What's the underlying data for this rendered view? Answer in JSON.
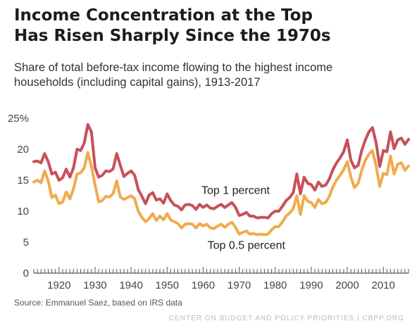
{
  "header": {
    "title_line1": "Income Concentration at the Top",
    "title_line2": "Has Risen Sharply Since the 1970s",
    "subtitle_line1": "Share of total before-tax income flowing to the highest income",
    "subtitle_line2": "households (including capital gains), 1913-2017"
  },
  "footer": {
    "source": "Source: Emmanuel Saez, based on IRS data",
    "credit": "CENTER ON BUDGET AND POLICY PRIORITIES | CBPP.ORG"
  },
  "colors": {
    "top1": "#c8505a",
    "top05": "#f0ab4e",
    "axis": "#555555",
    "grid": "#cccccc"
  },
  "chart_data": {
    "type": "line",
    "title": "Income Concentration at the Top Has Risen Sharply Since the 1970s",
    "xlabel": "",
    "ylabel": "",
    "xlim": [
      1913,
      2017
    ],
    "ylim": [
      0,
      25
    ],
    "y_ticks": [
      0,
      5,
      10,
      15,
      20,
      25
    ],
    "y_tick_labels": [
      "0",
      "5",
      "10",
      "15",
      "20",
      "25%"
    ],
    "x_ticks": [
      1920,
      1930,
      1940,
      1950,
      1960,
      1970,
      1980,
      1990,
      2000,
      2010
    ],
    "x_tick_labels": [
      "1920",
      "1930",
      "1940",
      "1950",
      "1960",
      "1970",
      "1980",
      "1990",
      "2000",
      "2010"
    ],
    "grid": false,
    "series": [
      {
        "name": "Top 1 percent",
        "color": "#c8505a",
        "x": [
          1913,
          1914,
          1915,
          1916,
          1917,
          1918,
          1919,
          1920,
          1921,
          1922,
          1923,
          1924,
          1925,
          1926,
          1927,
          1928,
          1929,
          1930,
          1931,
          1932,
          1933,
          1934,
          1935,
          1936,
          1937,
          1938,
          1939,
          1940,
          1941,
          1942,
          1943,
          1944,
          1945,
          1946,
          1947,
          1948,
          1949,
          1950,
          1951,
          1952,
          1953,
          1954,
          1955,
          1956,
          1957,
          1958,
          1959,
          1960,
          1961,
          1962,
          1963,
          1964,
          1965,
          1966,
          1967,
          1968,
          1969,
          1970,
          1971,
          1972,
          1973,
          1974,
          1975,
          1976,
          1977,
          1978,
          1979,
          1980,
          1981,
          1982,
          1983,
          1984,
          1985,
          1986,
          1987,
          1988,
          1989,
          1990,
          1991,
          1992,
          1993,
          1994,
          1995,
          1996,
          1997,
          1998,
          1999,
          2000,
          2001,
          2002,
          2003,
          2004,
          2005,
          2006,
          2007,
          2008,
          2009,
          2010,
          2011,
          2012,
          2013,
          2014,
          2015,
          2016,
          2017
        ],
        "values": [
          18.0,
          18.1,
          17.8,
          19.3,
          18.0,
          16.0,
          16.3,
          15.0,
          15.4,
          16.8,
          15.5,
          17.0,
          20.0,
          19.8,
          21.0,
          24.0,
          22.8,
          17.0,
          15.5,
          15.8,
          16.5,
          16.4,
          16.8,
          19.3,
          17.4,
          15.6,
          16.1,
          16.5,
          15.8,
          13.5,
          12.4,
          11.2,
          12.6,
          13.0,
          11.8,
          12.0,
          11.3,
          12.8,
          11.7,
          11.0,
          10.8,
          10.2,
          11.0,
          11.1,
          10.9,
          10.3,
          11.1,
          10.6,
          11.0,
          10.5,
          10.4,
          10.8,
          11.1,
          10.6,
          11.0,
          11.4,
          10.6,
          9.3,
          9.5,
          9.8,
          9.2,
          9.2,
          8.9,
          9.0,
          9.0,
          8.9,
          9.6,
          10.0,
          10.0,
          10.8,
          11.7,
          12.2,
          13.0,
          16.0,
          12.8,
          15.5,
          14.5,
          14.3,
          13.4,
          14.7,
          14.0,
          14.2,
          15.2,
          16.7,
          17.8,
          18.6,
          19.6,
          21.5,
          18.2,
          17.0,
          17.4,
          19.8,
          21.5,
          22.8,
          23.5,
          21.0,
          17.2,
          19.8,
          19.6,
          22.8,
          20.1,
          21.5,
          21.8,
          20.8,
          21.6
        ]
      },
      {
        "name": "Top 0.5 percent",
        "color": "#f0ab4e",
        "x": [
          1913,
          1914,
          1915,
          1916,
          1917,
          1918,
          1919,
          1920,
          1921,
          1922,
          1923,
          1924,
          1925,
          1926,
          1927,
          1928,
          1929,
          1930,
          1931,
          1932,
          1933,
          1934,
          1935,
          1936,
          1937,
          1938,
          1939,
          1940,
          1941,
          1942,
          1943,
          1944,
          1945,
          1946,
          1947,
          1948,
          1949,
          1950,
          1951,
          1952,
          1953,
          1954,
          1955,
          1956,
          1957,
          1958,
          1959,
          1960,
          1961,
          1962,
          1963,
          1964,
          1965,
          1966,
          1967,
          1968,
          1969,
          1970,
          1971,
          1972,
          1973,
          1974,
          1975,
          1976,
          1977,
          1978,
          1979,
          1980,
          1981,
          1982,
          1983,
          1984,
          1985,
          1986,
          1987,
          1988,
          1989,
          1990,
          1991,
          1992,
          1993,
          1994,
          1995,
          1996,
          1997,
          1998,
          1999,
          2000,
          2001,
          2002,
          2003,
          2004,
          2005,
          2006,
          2007,
          2008,
          2009,
          2010,
          2011,
          2012,
          2013,
          2014,
          2015,
          2016,
          2017
        ],
        "values": [
          14.7,
          15.0,
          14.6,
          16.5,
          14.9,
          12.2,
          12.6,
          11.2,
          11.5,
          13.1,
          12.0,
          13.6,
          16.0,
          16.2,
          17.0,
          19.5,
          17.2,
          14.2,
          11.5,
          11.7,
          12.4,
          12.3,
          12.8,
          14.9,
          12.3,
          11.9,
          12.2,
          12.5,
          12.0,
          10.0,
          9.0,
          8.3,
          8.8,
          9.6,
          8.5,
          9.2,
          8.6,
          9.6,
          8.6,
          8.3,
          8.0,
          7.3,
          7.9,
          8.0,
          7.9,
          7.3,
          8.0,
          7.6,
          7.9,
          7.3,
          7.2,
          7.6,
          7.9,
          7.4,
          7.9,
          8.2,
          7.4,
          6.3,
          6.6,
          6.8,
          6.3,
          6.4,
          6.2,
          6.3,
          6.2,
          6.3,
          7.0,
          7.5,
          7.5,
          8.3,
          9.2,
          9.7,
          10.4,
          12.5,
          9.5,
          12.5,
          11.6,
          11.4,
          10.6,
          11.9,
          11.2,
          11.4,
          12.4,
          13.9,
          15.0,
          15.8,
          16.7,
          18.0,
          15.5,
          13.8,
          14.5,
          16.6,
          18.2,
          19.2,
          19.8,
          17.3,
          14.0,
          16.1,
          15.9,
          18.9,
          16.0,
          17.6,
          17.8,
          16.6,
          17.3
        ]
      }
    ],
    "annotations": [
      {
        "text": "Top 1 percent",
        "series": "Top 1 percent",
        "x": 1969,
        "y": 12.8
      },
      {
        "text": "Top 0.5 percent",
        "series": "Top 0.5 percent",
        "x": 1972,
        "y": 3.9
      }
    ]
  }
}
